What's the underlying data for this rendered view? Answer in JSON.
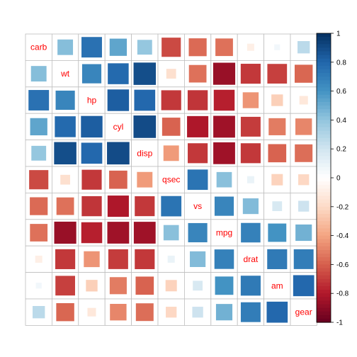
{
  "chart_data": {
    "type": "heatmap",
    "subtype": "correlation-matrix",
    "method": "square",
    "variables": [
      "carb",
      "wt",
      "hp",
      "cyl",
      "disp",
      "qsec",
      "vs",
      "mpg",
      "drat",
      "am",
      "gear"
    ],
    "matrix": [
      [
        1.0,
        0.43,
        0.75,
        0.53,
        0.39,
        -0.66,
        -0.57,
        -0.55,
        -0.09,
        0.06,
        0.27
      ],
      [
        0.43,
        1.0,
        0.66,
        0.78,
        0.89,
        -0.17,
        -0.55,
        -0.87,
        -0.71,
        -0.69,
        -0.58
      ],
      [
        0.75,
        0.66,
        1.0,
        0.83,
        0.79,
        -0.71,
        -0.72,
        -0.78,
        -0.45,
        -0.24,
        -0.13
      ],
      [
        0.53,
        0.78,
        0.83,
        1.0,
        0.9,
        -0.59,
        -0.81,
        -0.85,
        -0.7,
        -0.52,
        -0.49
      ],
      [
        0.39,
        0.89,
        0.79,
        0.9,
        1.0,
        -0.43,
        -0.71,
        -0.85,
        -0.71,
        -0.59,
        -0.56
      ],
      [
        -0.66,
        -0.17,
        -0.71,
        -0.59,
        -0.43,
        1.0,
        0.74,
        0.42,
        0.09,
        -0.23,
        -0.21
      ],
      [
        -0.57,
        -0.55,
        -0.72,
        -0.81,
        -0.71,
        0.74,
        1.0,
        0.66,
        0.44,
        0.17,
        0.21
      ],
      [
        -0.55,
        -0.87,
        -0.78,
        -0.85,
        -0.85,
        0.42,
        0.66,
        1.0,
        0.68,
        0.6,
        0.48
      ],
      [
        -0.09,
        -0.71,
        -0.45,
        -0.7,
        -0.71,
        0.09,
        0.44,
        0.68,
        1.0,
        0.71,
        0.7
      ],
      [
        0.06,
        -0.69,
        -0.24,
        -0.52,
        -0.59,
        -0.23,
        0.17,
        0.6,
        0.71,
        1.0,
        0.79
      ],
      [
        0.27,
        -0.58,
        -0.13,
        -0.49,
        -0.56,
        -0.21,
        0.21,
        0.48,
        0.7,
        0.79,
        1.0
      ]
    ],
    "colorbar": {
      "range": [
        -1,
        1
      ],
      "ticks": [
        "1",
        "0.8",
        "0.6",
        "0.4",
        "0.2",
        "0",
        "-0.2",
        "-0.4",
        "-0.6",
        "-0.8",
        "-1"
      ],
      "palette": [
        "#67001F",
        "#B2182B",
        "#D6604D",
        "#F4A582",
        "#FDDBC7",
        "#FFFFFF",
        "#D1E5F0",
        "#92C5DE",
        "#4393C3",
        "#2166AC",
        "#053061"
      ],
      "placement": "right"
    },
    "label_color": "#FF0000",
    "grid_color": "#BEBEBE"
  }
}
